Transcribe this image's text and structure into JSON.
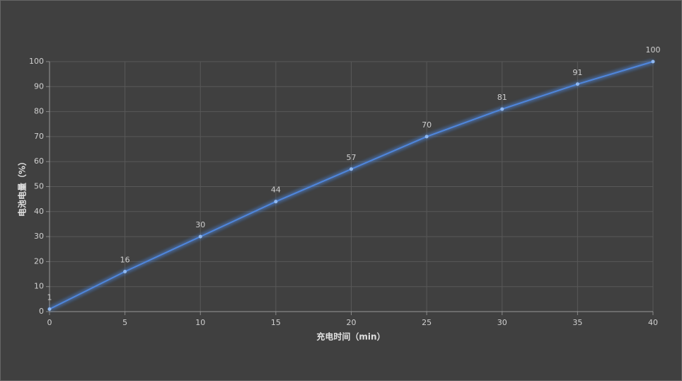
{
  "chart_data": {
    "type": "line",
    "x_label": "充电时间（min）",
    "y_label": "电池电量（%）",
    "x": [
      0,
      5,
      10,
      15,
      20,
      25,
      30,
      35,
      40
    ],
    "values": [
      1,
      16,
      30,
      44,
      57,
      70,
      81,
      91,
      100
    ],
    "color": "#4f86dc",
    "xlim": [
      0,
      40
    ],
    "xticks": [
      0,
      5,
      10,
      15,
      20,
      25,
      30,
      35,
      40
    ],
    "ylim": [
      0,
      100
    ],
    "yticks": [
      0,
      10,
      20,
      30,
      40,
      50,
      60,
      70,
      80,
      90,
      100
    ],
    "grid": true
  }
}
